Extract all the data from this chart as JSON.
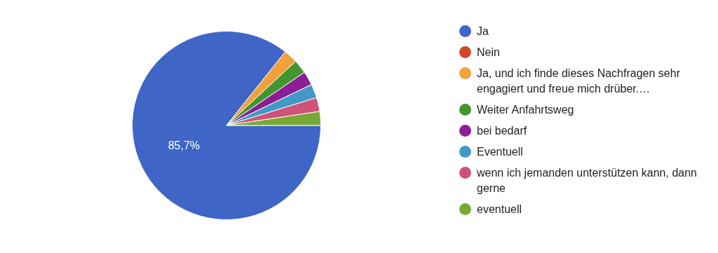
{
  "chart_data": {
    "type": "pie",
    "categories": [
      "Ja",
      "Nein",
      "Ja, und ich finde dieses Nachfragen sehr engagiert und freue mich drüber.…",
      "Weiter Anfahrtsweg",
      "bei bedarf",
      "Eventuell",
      "wenn ich jemanden unterstützen kann, dann gerne",
      "eventuell"
    ],
    "values": [
      85.7,
      0,
      2.38,
      2.38,
      2.38,
      2.38,
      2.38,
      2.38
    ],
    "colors": [
      "#3f66c6",
      "#d2472a",
      "#f2a03a",
      "#43962f",
      "#8a1f95",
      "#4399c5",
      "#cf5378",
      "#79a935"
    ],
    "value_labels": [
      "85,7%",
      null,
      null,
      null,
      null,
      null,
      null,
      null
    ],
    "legend": "right"
  }
}
